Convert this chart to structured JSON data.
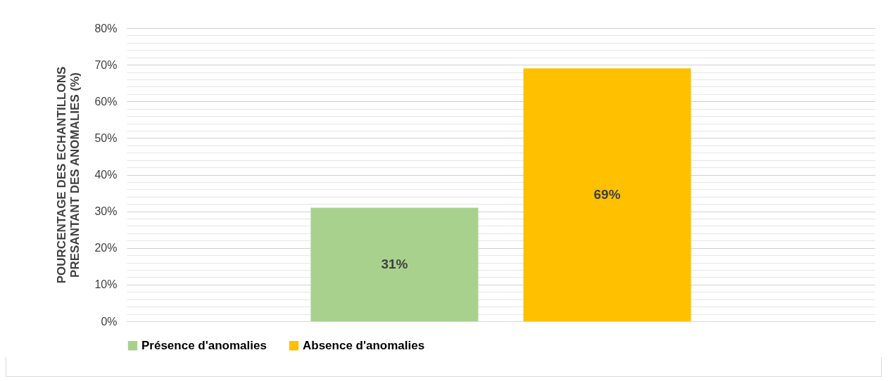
{
  "chart_data": {
    "type": "bar",
    "ylabel": "POURCENTAGE DES ECHANTILLONS PRESANTANT DES ANOMALIES (%)",
    "categories": [
      null
    ],
    "series": [
      {
        "name": "Présence d'anomalies",
        "color": "#a9d18e",
        "values": [
          31
        ],
        "value_labels": [
          "31%"
        ]
      },
      {
        "name": "Absence d'anomalies",
        "color": "#ffc000",
        "values": [
          69
        ],
        "value_labels": [
          "69%"
        ]
      }
    ],
    "ylim": [
      0,
      80
    ],
    "yticks": [
      {
        "value": 0,
        "label": "0%"
      },
      {
        "value": 2,
        "label": null
      },
      {
        "value": 4,
        "label": null
      },
      {
        "value": 6,
        "label": null
      },
      {
        "value": 8,
        "label": null
      },
      {
        "value": 10,
        "label": "10%"
      },
      {
        "value": 12,
        "label": null
      },
      {
        "value": 14,
        "label": null
      },
      {
        "value": 16,
        "label": null
      },
      {
        "value": 18,
        "label": null
      },
      {
        "value": 20,
        "label": "20%"
      },
      {
        "value": 22,
        "label": null
      },
      {
        "value": 24,
        "label": null
      },
      {
        "value": 26,
        "label": null
      },
      {
        "value": 28,
        "label": null
      },
      {
        "value": 30,
        "label": "30%"
      },
      {
        "value": 32,
        "label": null
      },
      {
        "value": 34,
        "label": null
      },
      {
        "value": 36,
        "label": null
      },
      {
        "value": 38,
        "label": null
      },
      {
        "value": 40,
        "label": "40%"
      },
      {
        "value": 42,
        "label": null
      },
      {
        "value": 44,
        "label": null
      },
      {
        "value": 46,
        "label": null
      },
      {
        "value": 48,
        "label": null
      },
      {
        "value": 50,
        "label": "50%"
      },
      {
        "value": 52,
        "label": null
      },
      {
        "value": 54,
        "label": null
      },
      {
        "value": 56,
        "label": null
      },
      {
        "value": 58,
        "label": null
      },
      {
        "value": 60,
        "label": "60%"
      },
      {
        "value": 62,
        "label": null
      },
      {
        "value": 64,
        "label": null
      },
      {
        "value": 66,
        "label": null
      },
      {
        "value": 68,
        "label": null
      },
      {
        "value": 70,
        "label": "70%"
      },
      {
        "value": 72,
        "label": null
      },
      {
        "value": 74,
        "label": null
      },
      {
        "value": 76,
        "label": null
      },
      {
        "value": 78,
        "label": null
      },
      {
        "value": 80,
        "label": "80%"
      }
    ],
    "grid": "y",
    "legend": "bottom"
  }
}
